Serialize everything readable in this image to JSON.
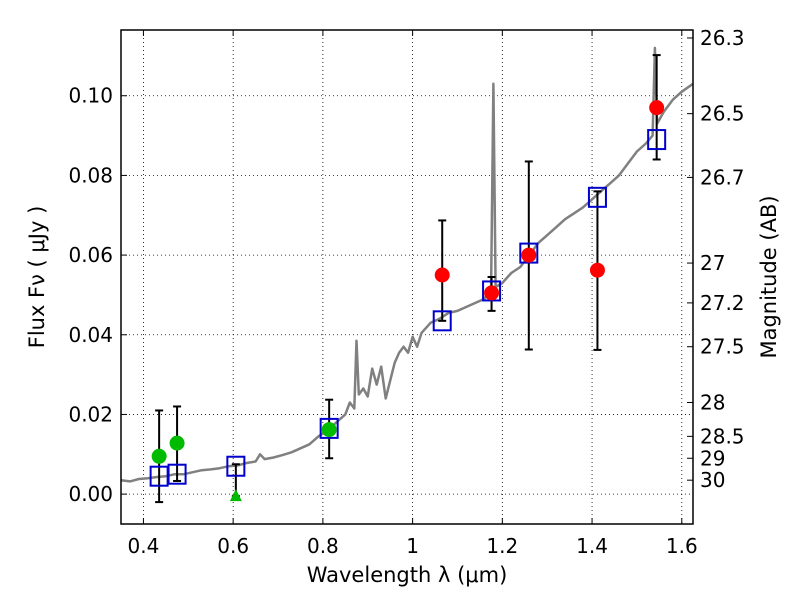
{
  "chart_data": {
    "type": "scatter",
    "title": "",
    "xlabel": "Wavelength  λ (μm)",
    "ylabel": "Flux  Fν  ( μJy )",
    "y2label": "Magnitude (AB)",
    "xlim": [
      0.35,
      1.625
    ],
    "ylim": [
      -0.0075,
      0.1165
    ],
    "grid": true,
    "x_ticks": [
      {
        "value": 0.4,
        "label": "0.4"
      },
      {
        "value": 0.6,
        "label": "0.6"
      },
      {
        "value": 0.8,
        "label": "0.8"
      },
      {
        "value": 1.0,
        "label": "1"
      },
      {
        "value": 1.2,
        "label": "1.2"
      },
      {
        "value": 1.4,
        "label": "1.4"
      },
      {
        "value": 1.6,
        "label": "1.6"
      }
    ],
    "y_ticks": [
      {
        "value": 0.0,
        "label": "0.00"
      },
      {
        "value": 0.02,
        "label": "0.02"
      },
      {
        "value": 0.04,
        "label": "0.04"
      },
      {
        "value": 0.06,
        "label": "0.06"
      },
      {
        "value": 0.08,
        "label": "0.08"
      },
      {
        "value": 0.1,
        "label": "0.10"
      }
    ],
    "y2_ticks": [
      {
        "flux": 0.1145,
        "label": "26.3"
      },
      {
        "flux": 0.0955,
        "label": "26.5"
      },
      {
        "flux": 0.0795,
        "label": "26.7"
      },
      {
        "flux": 0.058,
        "label": "27"
      },
      {
        "flux": 0.048,
        "label": "27.2"
      },
      {
        "flux": 0.037,
        "label": "27.5"
      },
      {
        "flux": 0.023,
        "label": "28"
      },
      {
        "flux": 0.0145,
        "label": "28.5"
      },
      {
        "flux": 0.009,
        "label": "29"
      },
      {
        "flux": 0.0035,
        "label": "30"
      }
    ],
    "model_spectrum": {
      "color": "#808080",
      "points": [
        [
          0.35,
          0.0035
        ],
        [
          0.37,
          0.0032
        ],
        [
          0.39,
          0.0038
        ],
        [
          0.41,
          0.004
        ],
        [
          0.43,
          0.0043
        ],
        [
          0.45,
          0.0045
        ],
        [
          0.47,
          0.005
        ],
        [
          0.49,
          0.005
        ],
        [
          0.51,
          0.0055
        ],
        [
          0.53,
          0.006
        ],
        [
          0.55,
          0.0062
        ],
        [
          0.57,
          0.0065
        ],
        [
          0.59,
          0.007
        ],
        [
          0.61,
          0.0072
        ],
        [
          0.63,
          0.0078
        ],
        [
          0.65,
          0.0082
        ],
        [
          0.66,
          0.01
        ],
        [
          0.67,
          0.0088
        ],
        [
          0.69,
          0.0092
        ],
        [
          0.71,
          0.0098
        ],
        [
          0.73,
          0.0105
        ],
        [
          0.75,
          0.0115
        ],
        [
          0.77,
          0.0125
        ],
        [
          0.79,
          0.0145
        ],
        [
          0.81,
          0.016
        ],
        [
          0.83,
          0.018
        ],
        [
          0.85,
          0.02
        ],
        [
          0.86,
          0.023
        ],
        [
          0.87,
          0.0215
        ],
        [
          0.875,
          0.0385
        ],
        [
          0.88,
          0.025
        ],
        [
          0.89,
          0.0265
        ],
        [
          0.9,
          0.0245
        ],
        [
          0.91,
          0.0315
        ],
        [
          0.92,
          0.0275
        ],
        [
          0.93,
          0.032
        ],
        [
          0.94,
          0.024
        ],
        [
          0.95,
          0.0285
        ],
        [
          0.96,
          0.033
        ],
        [
          0.97,
          0.0355
        ],
        [
          0.98,
          0.037
        ],
        [
          0.99,
          0.0355
        ],
        [
          1.0,
          0.0395
        ],
        [
          1.01,
          0.037
        ],
        [
          1.02,
          0.0405
        ],
        [
          1.04,
          0.043
        ],
        [
          1.06,
          0.044
        ],
        [
          1.08,
          0.0455
        ],
        [
          1.1,
          0.046
        ],
        [
          1.12,
          0.047
        ],
        [
          1.14,
          0.048
        ],
        [
          1.16,
          0.049
        ],
        [
          1.175,
          0.052
        ],
        [
          1.18,
          0.103
        ],
        [
          1.185,
          0.052
        ],
        [
          1.2,
          0.053
        ],
        [
          1.22,
          0.0555
        ],
        [
          1.24,
          0.057
        ],
        [
          1.26,
          0.06
        ],
        [
          1.28,
          0.063
        ],
        [
          1.3,
          0.065
        ],
        [
          1.32,
          0.067
        ],
        [
          1.34,
          0.069
        ],
        [
          1.36,
          0.0705
        ],
        [
          1.38,
          0.072
        ],
        [
          1.4,
          0.074
        ],
        [
          1.42,
          0.076
        ],
        [
          1.44,
          0.078
        ],
        [
          1.46,
          0.08
        ],
        [
          1.48,
          0.083
        ],
        [
          1.5,
          0.086
        ],
        [
          1.52,
          0.088
        ],
        [
          1.535,
          0.09
        ],
        [
          1.54,
          0.112
        ],
        [
          1.545,
          0.093
        ],
        [
          1.56,
          0.096
        ],
        [
          1.58,
          0.099
        ],
        [
          1.6,
          0.101
        ],
        [
          1.625,
          0.103
        ]
      ]
    },
    "series": [
      {
        "name": "model_band_fluxes",
        "marker": "open-square",
        "color": "#0000cc",
        "points": [
          {
            "x": 0.435,
            "y": 0.0045
          },
          {
            "x": 0.475,
            "y": 0.005
          },
          {
            "x": 0.606,
            "y": 0.007
          },
          {
            "x": 0.814,
            "y": 0.0165
          },
          {
            "x": 1.066,
            "y": 0.0435
          },
          {
            "x": 1.176,
            "y": 0.051
          },
          {
            "x": 1.259,
            "y": 0.0605
          },
          {
            "x": 1.412,
            "y": 0.0745
          },
          {
            "x": 1.544,
            "y": 0.089
          }
        ]
      },
      {
        "name": "optical_photometry",
        "marker": "filled-circle",
        "color": "#00bb00",
        "points": [
          {
            "x": 0.435,
            "y": 0.0095,
            "err_lo": 0.0115,
            "err_hi": 0.0115
          },
          {
            "x": 0.475,
            "y": 0.0128,
            "err_lo": 0.0095,
            "err_hi": 0.0092
          },
          {
            "x": 0.814,
            "y": 0.0162,
            "err_lo": 0.0072,
            "err_hi": 0.0075
          }
        ]
      },
      {
        "name": "upper_limit",
        "marker": "filled-triangle",
        "color": "#00bb00",
        "points": [
          {
            "x": 0.606,
            "y": -0.0005,
            "err_lo": 0.0,
            "err_hi": 0.008
          }
        ]
      },
      {
        "name": "nir_photometry",
        "marker": "filled-circle",
        "color": "#ff0000",
        "points": [
          {
            "x": 1.066,
            "y": 0.055,
            "err_lo": 0.0115,
            "err_hi": 0.0137
          },
          {
            "x": 1.176,
            "y": 0.0505,
            "err_lo": 0.0045,
            "err_hi": 0.004
          },
          {
            "x": 1.259,
            "y": 0.06,
            "err_lo": 0.0237,
            "err_hi": 0.0235
          },
          {
            "x": 1.412,
            "y": 0.0562,
            "err_lo": 0.02,
            "err_hi": 0.0198
          },
          {
            "x": 1.544,
            "y": 0.097,
            "err_lo": 0.013,
            "err_hi": 0.0132
          }
        ]
      }
    ]
  }
}
